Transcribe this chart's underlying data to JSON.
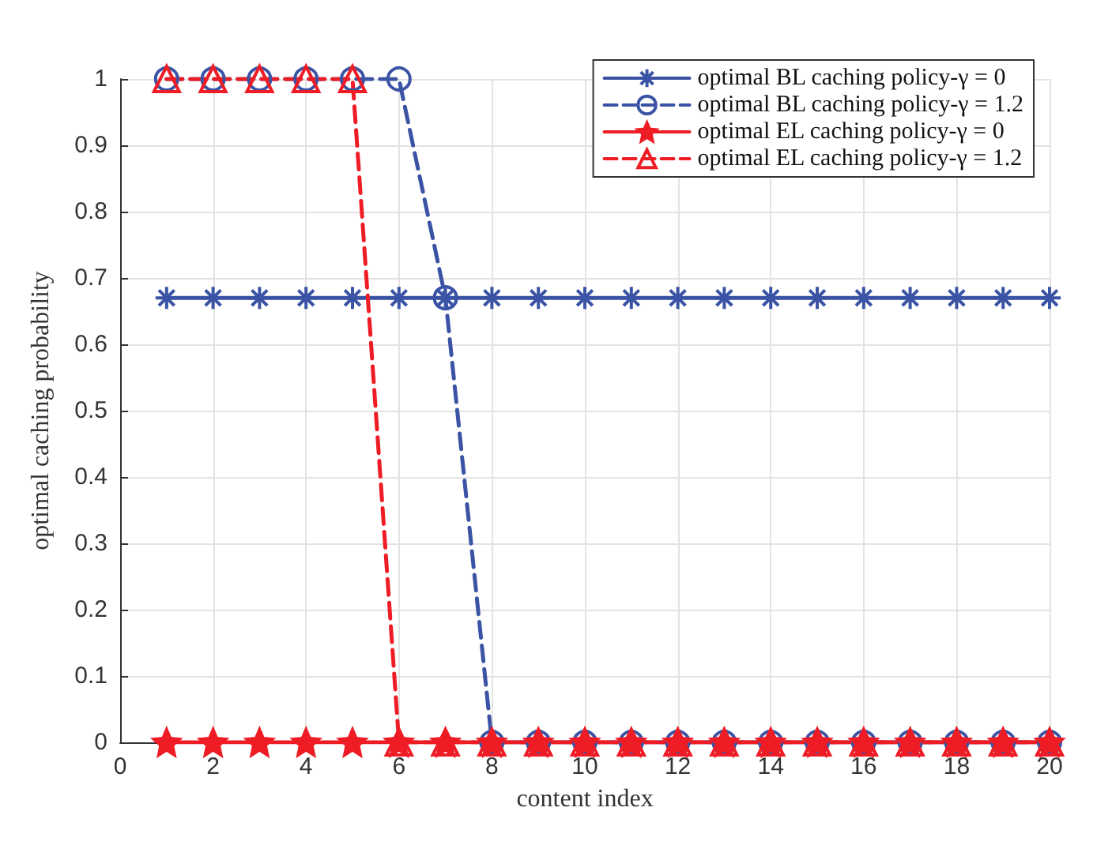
{
  "chart_data": {
    "type": "line",
    "xlabel": "content index",
    "ylabel": "optimal caching probability",
    "x": [
      1,
      2,
      3,
      4,
      5,
      6,
      7,
      8,
      9,
      10,
      11,
      12,
      13,
      14,
      15,
      16,
      17,
      18,
      19,
      20
    ],
    "series": [
      {
        "name": "optimal BL caching policy-γ = 0",
        "color": "#3a53a4",
        "marker": "cross",
        "line_style": "solid",
        "values": [
          0.67,
          0.67,
          0.67,
          0.67,
          0.67,
          0.67,
          0.67,
          0.67,
          0.67,
          0.67,
          0.67,
          0.67,
          0.67,
          0.67,
          0.67,
          0.67,
          0.67,
          0.67,
          0.67,
          0.67
        ]
      },
      {
        "name": "optimal BL caching policy-γ = 1.2",
        "color": "#3a53a4",
        "marker": "circle",
        "line_style": "dashed",
        "values": [
          1,
          1,
          1,
          1,
          1,
          1,
          0.67,
          0,
          0,
          0,
          0,
          0,
          0,
          0,
          0,
          0,
          0,
          0,
          0,
          0
        ]
      },
      {
        "name": "optimal EL caching policy-γ = 0",
        "color": "#ee1c25",
        "marker": "star",
        "line_style": "solid",
        "values": [
          0,
          0,
          0,
          0,
          0,
          0,
          0,
          0,
          0,
          0,
          0,
          0,
          0,
          0,
          0,
          0,
          0,
          0,
          0,
          0
        ]
      },
      {
        "name": "optimal EL caching policy-γ = 1.2",
        "color": "#ee1c25",
        "marker": "triangle",
        "line_style": "dashed",
        "values": [
          1,
          1,
          1,
          1,
          1,
          0,
          0,
          0,
          0,
          0,
          0,
          0,
          0,
          0,
          0,
          0,
          0,
          0,
          0,
          0
        ]
      }
    ],
    "xlim": [
      0,
      20
    ],
    "xticks": [
      0,
      2,
      4,
      6,
      8,
      10,
      12,
      14,
      16,
      18,
      20
    ],
    "ylim": [
      0,
      1
    ],
    "yticks": [
      0,
      0.1,
      0.2,
      0.3,
      0.4,
      0.5,
      0.6,
      0.7,
      0.8,
      0.9,
      1
    ],
    "grid": true,
    "legend": "top right"
  }
}
